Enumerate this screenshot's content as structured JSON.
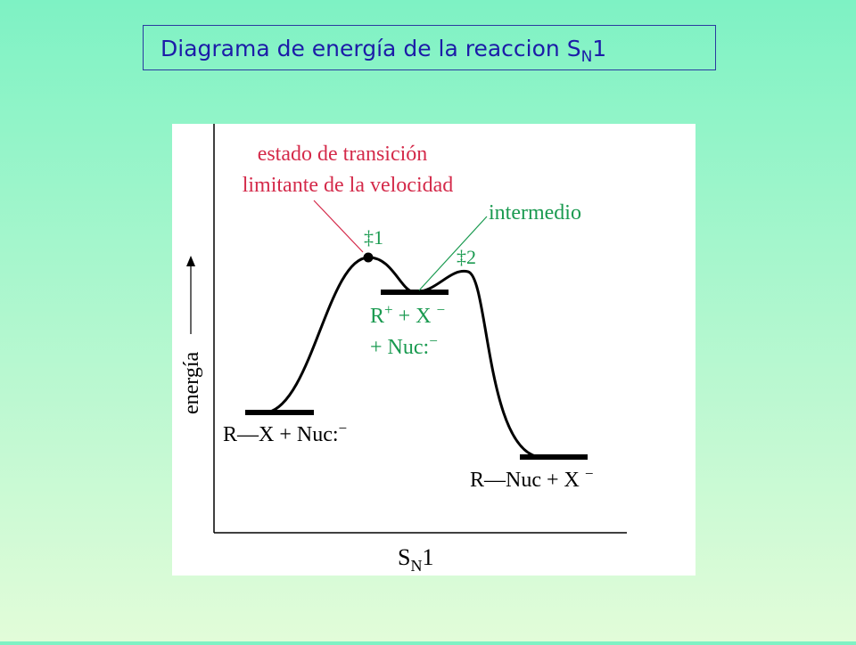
{
  "header": {
    "title": {
      "text": "Diagrama de energía de la reaccion S",
      "subscript": "N",
      "end": "1"
    }
  },
  "diagram": {
    "transition_state_label": [
      "estado de transición",
      "limitante de la velocidad"
    ],
    "intermediate_label": "intermedio",
    "ts1": "‡1",
    "ts2": "‡2",
    "y_axis": "energía",
    "reactants": {
      "text": "R—X + Nuc:",
      "charge": "−"
    },
    "intermediate_species": {
      "r": "R",
      "r_charge": "+",
      "x": " + X ",
      "x_charge": "−",
      "nuc": "+ Nuc:",
      "nuc_charge": "−"
    },
    "products": {
      "text": "R—Nuc + X ",
      "charge": "−"
    },
    "x_axis": {
      "text": "S",
      "subscript": "N",
      "end": "1"
    }
  }
}
